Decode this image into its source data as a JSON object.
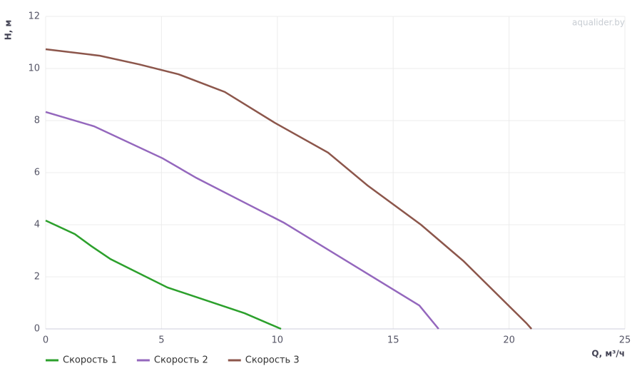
{
  "chart_data": {
    "type": "line",
    "x_label": "Q, м³/ч",
    "y_label": "H, м",
    "watermark": "aqualider.by",
    "xlim": [
      0,
      25
    ],
    "xticks": [
      0,
      5,
      10,
      15,
      20,
      25
    ],
    "ylim": [
      0,
      12
    ],
    "yticks": [
      0,
      2,
      4,
      6,
      8,
      10,
      12
    ],
    "grid": true,
    "legend": "bottom-left",
    "series": [
      {
        "name": "Скорость 1",
        "color": "#2ca02c",
        "x": [
          0,
          1.26,
          1.97,
          2.8,
          5.26,
          8.59,
          10.16
        ],
        "values": [
          4.16,
          3.64,
          3.18,
          2.68,
          1.59,
          0.6,
          0
        ]
      },
      {
        "name": "Скорость 2",
        "color": "#9467bd",
        "x": [
          0,
          2.09,
          5.05,
          6.5,
          8.65,
          10.28,
          16.13,
          16.96
        ],
        "values": [
          8.33,
          7.78,
          6.55,
          5.8,
          4.82,
          4.08,
          0.9,
          0
        ]
      },
      {
        "name": "Скорость 3",
        "color": "#8c564b",
        "x": [
          0,
          2.34,
          4.03,
          5.73,
          7.73,
          9.88,
          12.19,
          13.89,
          16.2,
          18.04,
          20.75,
          20.97
        ],
        "values": [
          10.74,
          10.49,
          10.16,
          9.78,
          9.1,
          7.92,
          6.77,
          5.51,
          4.0,
          2.6,
          0.22,
          0
        ]
      }
    ]
  }
}
